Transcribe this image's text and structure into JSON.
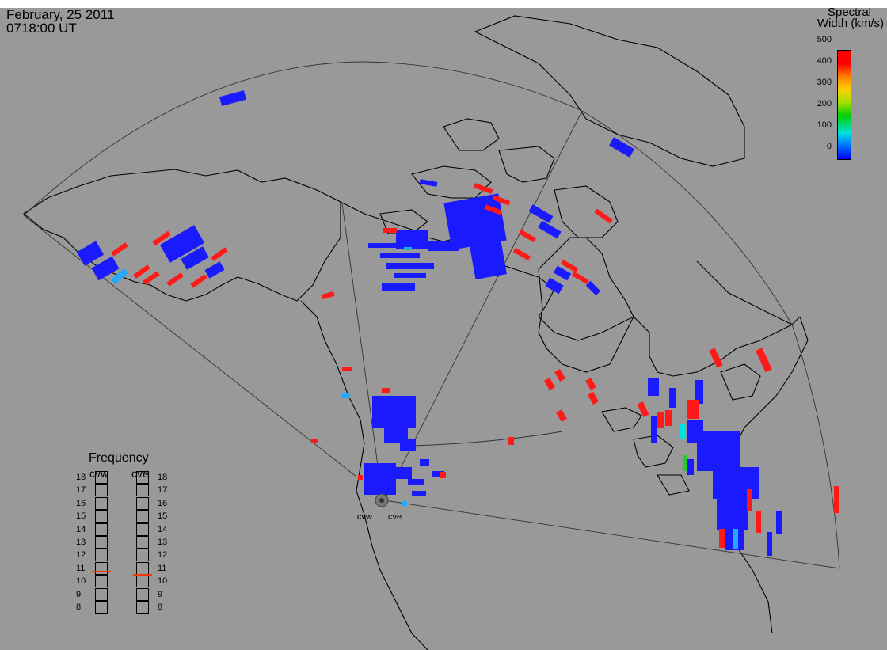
{
  "header": {
    "date": "February, 25 2011",
    "time": "0718:00 UT"
  },
  "colorbar": {
    "title_line1": "Spectral",
    "title_line2": "Width (km/s)",
    "ticks": [
      "500",
      "400",
      "300",
      "200",
      "100",
      "0"
    ],
    "colors": [
      "#0000ff",
      "#00ccff",
      "#00d000",
      "#ffd000",
      "#ff8000",
      "#ff0000"
    ]
  },
  "frequency_panel": {
    "title": "Frequency",
    "radars": [
      {
        "label": "cvw",
        "selected_mhz": 10.8
      },
      {
        "label": "cve",
        "selected_mhz": 10.6
      }
    ],
    "scale": [
      "18",
      "17",
      "16",
      "15",
      "14",
      "13",
      "12",
      "11",
      "10",
      "9",
      "8"
    ]
  },
  "map": {
    "radar_sites": [
      "cvw",
      "cve"
    ],
    "palette": {
      "blue": "#1a1aff",
      "red": "#ff1a1a",
      "cyan": "#22aaff",
      "green": "#22cc22",
      "land": "#999999",
      "coast": "#000000"
    }
  }
}
